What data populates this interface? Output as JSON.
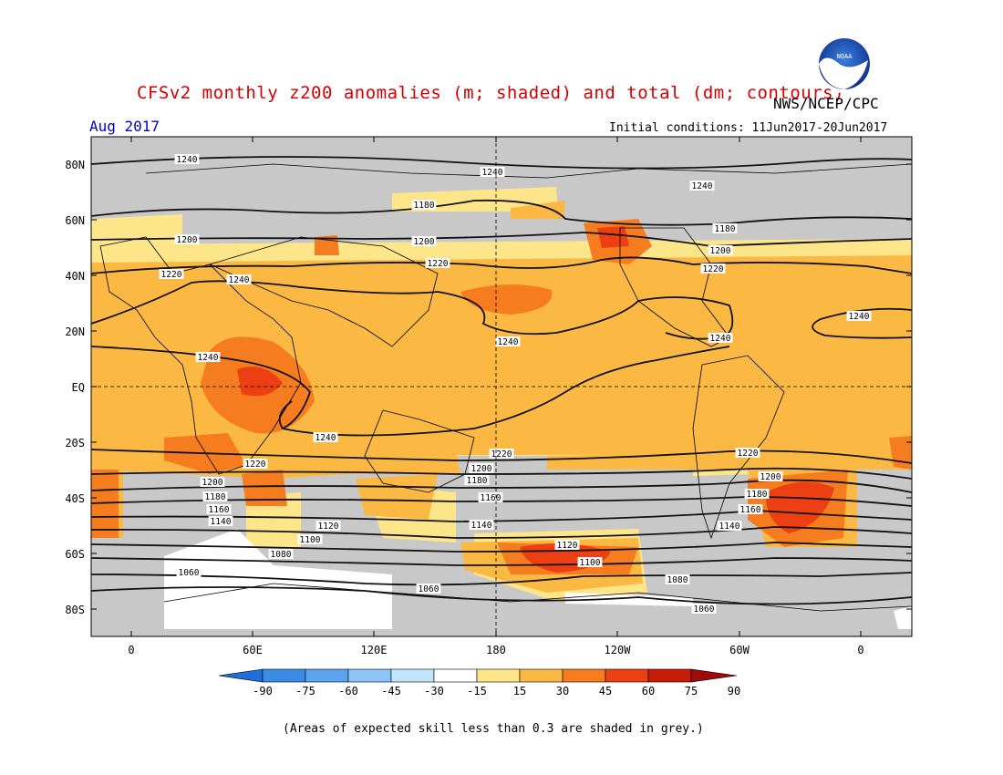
{
  "header": {
    "title": "CFSv2 monthly z200 anomalies (m; shaded) and total (dm; contours)",
    "organization": "NWS/NCEP/CPC",
    "logo_text": "NOAA",
    "valid_month": "Aug 2017",
    "initial_conditions": "Initial conditions: 11Jun2017-20Jun2017"
  },
  "map": {
    "lat_labels": [
      "80N",
      "60N",
      "40N",
      "20N",
      "EQ",
      "20S",
      "40S",
      "60S",
      "80S"
    ],
    "lon_labels": [
      "0",
      "60E",
      "120E",
      "180",
      "120W",
      "60W",
      "0"
    ],
    "contour_labels": [
      "1060",
      "1080",
      "1100",
      "1120",
      "1140",
      "1160",
      "1180",
      "1200",
      "1220",
      "1240"
    ]
  },
  "colorbar": {
    "levels": [
      "-90",
      "-75",
      "-60",
      "-45",
      "-30",
      "-15",
      "15",
      "30",
      "45",
      "60",
      "75",
      "90"
    ],
    "colors": [
      "#1e6fd9",
      "#3a8ae6",
      "#5ca3ee",
      "#8cc4f5",
      "#bfe6fa",
      "#ffffff",
      "#fde58a",
      "#fbb943",
      "#f57c1f",
      "#ec3f12",
      "#c71c0a",
      "#9e0b06"
    ]
  },
  "footer": {
    "note": "(Areas of expected skill less than 0.3 are shaded in grey.)"
  }
}
